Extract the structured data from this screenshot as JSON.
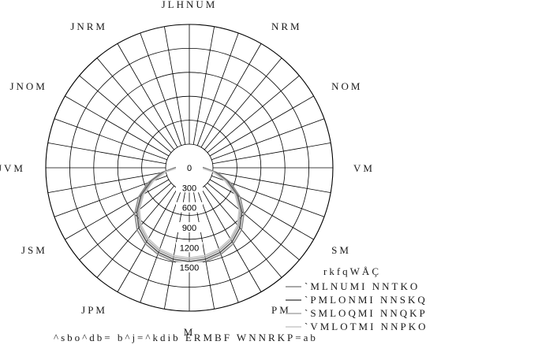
{
  "chart_data": {
    "type": "polar",
    "title": "",
    "angle_labels": [
      {
        "angle": 0,
        "text": "M"
      },
      {
        "angle": 30,
        "text": "PM"
      },
      {
        "angle": 60,
        "text": "SM"
      },
      {
        "angle": 90,
        "text": "VM"
      },
      {
        "angle": 120,
        "text": "NOM"
      },
      {
        "angle": 150,
        "text": "NRM"
      },
      {
        "angle": 180,
        "text": "JLHNUM"
      },
      {
        "angle": 210,
        "text": "JNRM"
      },
      {
        "angle": 240,
        "text": "JNOM"
      },
      {
        "angle": 270,
        "text": "JVM"
      },
      {
        "angle": 300,
        "text": "JSM"
      },
      {
        "angle": 330,
        "text": "JPM"
      }
    ],
    "radial_ticks": [
      "0",
      "300",
      "600",
      "900",
      "1200",
      "1500"
    ],
    "radial_max": 1800,
    "rings": 6,
    "spokes": 36,
    "legend": {
      "title": "rkfqWÅÇ",
      "items": [
        {
          "label": "`MLNUMI NNTKO",
          "color": "#8c8c8c"
        },
        {
          "label": "`PMLONMI NNSKQ",
          "color": "#555555"
        },
        {
          "label": "`SMLOQMI NNQKP",
          "color": "#a8a8a8"
        },
        {
          "label": "`VMLOTMI NNPKO",
          "color": "#c8c8c8"
        }
      ]
    },
    "series": [
      {
        "name": "`MLNUMI NNTKO",
        "color": "#8c8c8c",
        "points": [
          [
            0,
            1440
          ],
          [
            10,
            1425
          ],
          [
            20,
            1385
          ],
          [
            30,
            1320
          ],
          [
            40,
            1220
          ],
          [
            50,
            1070
          ],
          [
            60,
            880
          ],
          [
            70,
            660
          ],
          [
            80,
            430
          ],
          [
            90,
            220
          ],
          [
            100,
            120
          ],
          [
            110,
            80
          ],
          [
            120,
            60
          ],
          [
            130,
            45
          ],
          [
            140,
            30
          ],
          [
            150,
            20
          ],
          [
            160,
            10
          ],
          [
            170,
            5
          ],
          [
            180,
            0
          ]
        ]
      },
      {
        "name": "`PMLONMI NNSKQ",
        "color": "#555555",
        "points": [
          [
            0,
            1410
          ],
          [
            10,
            1395
          ],
          [
            20,
            1355
          ],
          [
            30,
            1285
          ],
          [
            40,
            1180
          ],
          [
            50,
            1030
          ],
          [
            60,
            840
          ],
          [
            70,
            620
          ],
          [
            80,
            400
          ],
          [
            90,
            200
          ],
          [
            100,
            110
          ],
          [
            110,
            75
          ],
          [
            120,
            55
          ],
          [
            130,
            40
          ],
          [
            140,
            28
          ],
          [
            150,
            18
          ],
          [
            160,
            9
          ],
          [
            170,
            4
          ],
          [
            180,
            0
          ]
        ]
      },
      {
        "name": "`SMLOQMI NNQKP",
        "color": "#a8a8a8",
        "points": [
          [
            0,
            1380
          ],
          [
            10,
            1365
          ],
          [
            20,
            1325
          ],
          [
            30,
            1255
          ],
          [
            40,
            1150
          ],
          [
            50,
            1000
          ],
          [
            60,
            810
          ],
          [
            70,
            590
          ],
          [
            80,
            375
          ],
          [
            90,
            185
          ],
          [
            100,
            100
          ],
          [
            110,
            70
          ],
          [
            120,
            50
          ],
          [
            130,
            36
          ],
          [
            140,
            25
          ],
          [
            150,
            15
          ],
          [
            160,
            8
          ],
          [
            170,
            3
          ],
          [
            180,
            0
          ]
        ]
      },
      {
        "name": "`VMLOTMI NNPKO",
        "color": "#c8c8c8",
        "points": [
          [
            0,
            1355
          ],
          [
            10,
            1340
          ],
          [
            20,
            1300
          ],
          [
            30,
            1230
          ],
          [
            40,
            1125
          ],
          [
            50,
            975
          ],
          [
            60,
            790
          ],
          [
            70,
            570
          ],
          [
            80,
            360
          ],
          [
            90,
            175
          ],
          [
            100,
            95
          ],
          [
            110,
            65
          ],
          [
            120,
            48
          ],
          [
            130,
            34
          ],
          [
            140,
            23
          ],
          [
            150,
            14
          ],
          [
            160,
            7
          ],
          [
            170,
            3
          ],
          [
            180,
            0
          ]
        ]
      }
    ]
  },
  "footer": {
    "text": "^sbo^db= b^j=^kdib ERMBF WNNRKP=ab"
  }
}
